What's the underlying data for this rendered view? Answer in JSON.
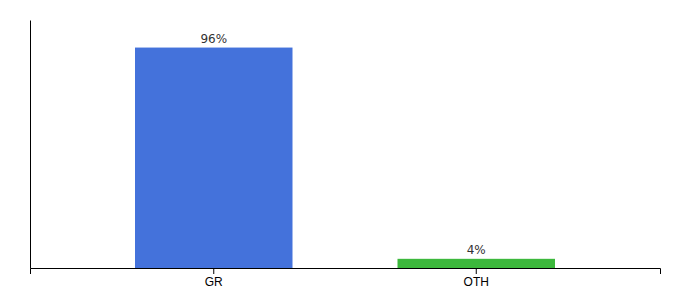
{
  "chart_data": {
    "type": "bar",
    "categories": [
      "GR",
      "OTH"
    ],
    "values": [
      96,
      4
    ],
    "value_labels": [
      "96%",
      "4%"
    ],
    "colors": [
      "#4472db",
      "#3cb83c"
    ],
    "ylim": [
      0,
      108
    ],
    "data_labels": true,
    "tick_labels": "x",
    "grid": false
  }
}
